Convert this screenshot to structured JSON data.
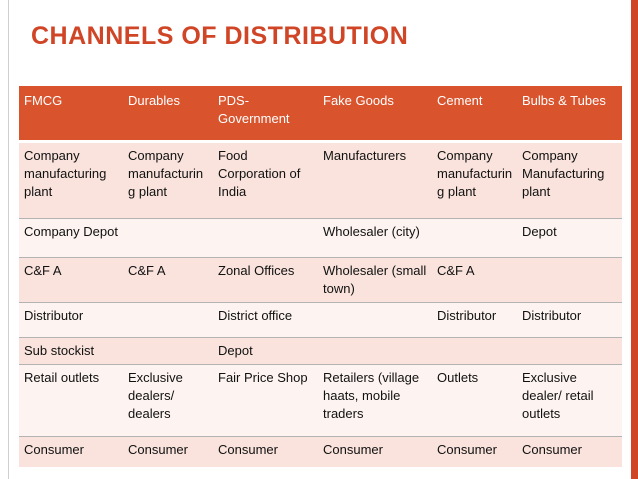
{
  "title": "CHANNELS OF DISTRIBUTION",
  "colors": {
    "accent": "#d04526",
    "header_bg": "#d9532d",
    "row_odd": "#f9e3dc",
    "row_even": "#fdf4f1"
  },
  "table": {
    "headers": [
      "FMCG",
      "Durables",
      "PDS-Government",
      "Fake Goods",
      "Cement",
      "Bulbs & Tubes"
    ],
    "rows": [
      [
        "Company manufacturing plant",
        "Company manufacturing plant",
        "Food Corporation of India",
        "Manufacturers",
        "Company manufacturing plant",
        "Company Manufacturing plant"
      ],
      [
        "Company Depot",
        "",
        "",
        "Wholesaler (city)",
        "",
        "Depot"
      ],
      [
        "C&F A",
        "C&F A",
        "Zonal Offices",
        "Wholesaler (small town)",
        "C&F A",
        ""
      ],
      [
        "Distributor",
        "",
        "District office",
        "",
        "Distributor",
        "Distributor"
      ],
      [
        "Sub stockist",
        "",
        "Depot",
        "",
        "",
        ""
      ],
      [
        "Retail outlets",
        "Exclusive dealers/ dealers",
        "Fair Price Shop",
        "Retailers (village haats, mobile traders",
        "Outlets",
        "Exclusive dealer/ retail outlets"
      ],
      [
        "Consumer",
        "Consumer",
        "Consumer",
        "Consumer",
        "Consumer",
        "Consumer"
      ]
    ]
  }
}
